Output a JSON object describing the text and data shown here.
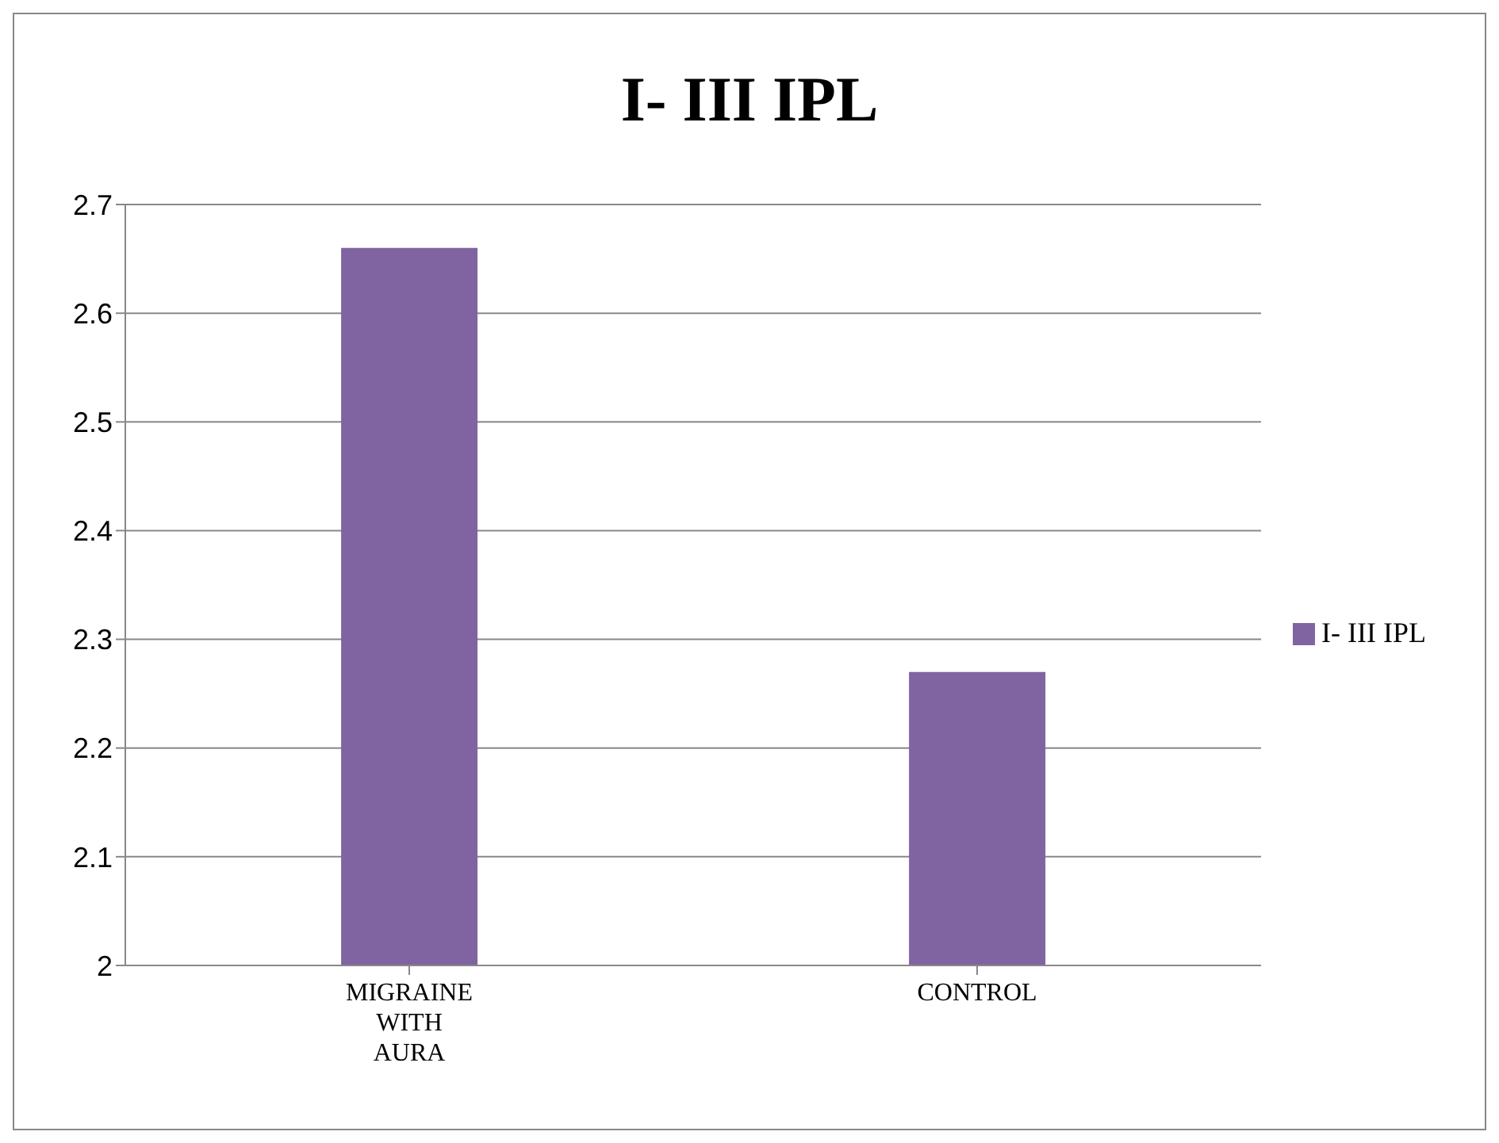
{
  "chart_data": {
    "type": "bar",
    "title": "I- III IPL",
    "categories": [
      "MIGRAINE WITH AURA",
      "CONTROL"
    ],
    "series": [
      {
        "name": "I- III IPL",
        "color": "#8064a2",
        "values": [
          2.66,
          2.27
        ]
      }
    ],
    "ylim": [
      2,
      2.7
    ],
    "yticks": [
      2,
      2.1,
      2.2,
      2.3,
      2.4,
      2.5,
      2.6,
      2.7
    ],
    "grid": "y",
    "legend": "right"
  }
}
